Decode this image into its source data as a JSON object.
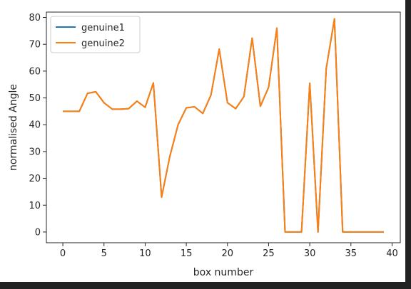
{
  "chart_data": {
    "type": "line",
    "title": "",
    "xlabel": "box number",
    "ylabel": "normalised Angle",
    "xlim": [
      -2,
      41
    ],
    "ylim": [
      -4,
      82
    ],
    "xticks": [
      0,
      5,
      10,
      15,
      20,
      25,
      30,
      35,
      40
    ],
    "yticks": [
      0,
      10,
      20,
      30,
      40,
      50,
      60,
      70,
      80
    ],
    "grid": false,
    "legend": "top-left",
    "x": [
      0,
      1,
      2,
      3,
      4,
      5,
      6,
      7,
      8,
      9,
      10,
      11,
      12,
      13,
      14,
      15,
      16,
      17,
      18,
      19,
      20,
      21,
      22,
      23,
      24,
      25,
      26,
      27,
      28,
      29,
      30,
      31,
      32,
      33,
      34,
      35,
      36,
      37,
      38,
      39
    ],
    "series": [
      {
        "name": "genuine1",
        "color": "#1f77b4",
        "values": [
          45,
          45,
          45,
          51.7,
          52.3,
          48.2,
          45.8,
          45.8,
          46,
          48.8,
          46.5,
          55.6,
          13,
          28.2,
          40,
          46.3,
          46.7,
          44.2,
          51.1,
          68.2,
          48.2,
          46,
          50.5,
          72.3,
          46.9,
          54,
          76,
          0,
          0,
          0,
          55.5,
          0,
          61,
          79.5,
          0,
          0,
          0,
          0,
          0,
          0
        ]
      },
      {
        "name": "genuine2",
        "color": "#ff7f0e",
        "values": [
          45,
          45,
          45,
          51.7,
          52.3,
          48.2,
          45.8,
          45.8,
          46,
          48.8,
          46.5,
          55.6,
          13,
          28.2,
          40,
          46.3,
          46.7,
          44.2,
          51.1,
          68.2,
          48.2,
          46,
          50.5,
          72.3,
          46.9,
          54,
          76,
          0,
          0,
          0,
          55.5,
          0,
          61,
          79.5,
          0,
          0,
          0,
          0,
          0,
          0
        ]
      }
    ]
  }
}
